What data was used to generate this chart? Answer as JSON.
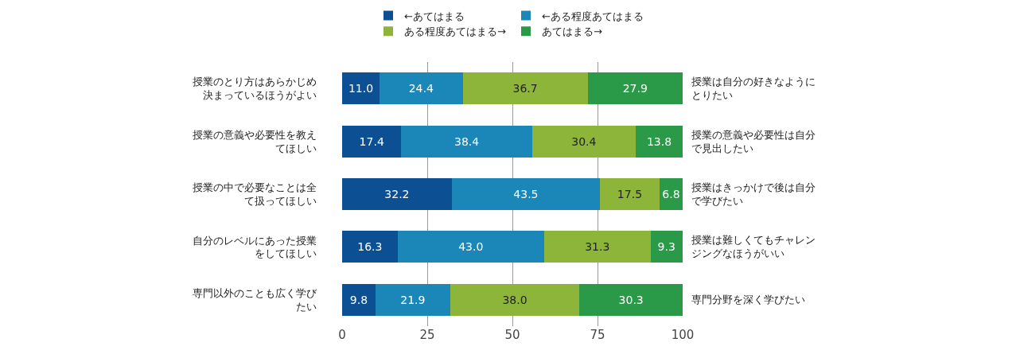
{
  "chart_data": {
    "type": "bar",
    "orientation": "horizontal",
    "stacked": true,
    "grid": "x",
    "legend": "top",
    "categories": [
      "授業のとり方はあらかじめ決まっているほうがよい",
      "授業の意義や必要性を教えてほしい",
      "授業の中で必要なことは全て扱ってほしい",
      "自分のレベルにあった授業をしてほしい",
      "専門以外のことも広く学びたい"
    ],
    "y2_categories": [
      "授業は自分の好きなようにとりたい",
      "授業の意義や必要性は自分で見出したい",
      "授業はきっかけで後は自分で学びたい",
      "授業は難しくてもチャレンジングなほうがいい",
      "専門分野を深く学びたい"
    ],
    "series": [
      {
        "name": "←あてはまる",
        "color": "#0d4f93",
        "values": [
          11.0,
          17.4,
          32.2,
          16.3,
          9.8
        ],
        "value_labels": [
          "11.0",
          "17.4",
          "32.2",
          "16.3",
          "9.8"
        ]
      },
      {
        "name": "←ある程度あてはまる",
        "color": "#1a87b8",
        "values": [
          24.4,
          38.4,
          43.5,
          43.0,
          21.9
        ],
        "value_labels": [
          "24.4",
          "38.4",
          "43.5",
          "43.0",
          "21.9"
        ]
      },
      {
        "name": "ある程度あてはまる→",
        "color": "#8cb53a",
        "values": [
          36.7,
          30.4,
          17.5,
          31.3,
          38.0
        ],
        "value_labels": [
          "36.7",
          "30.4",
          "17.5",
          "31.3",
          "38.0"
        ]
      },
      {
        "name": "あてはまる→",
        "color": "#2a9a48",
        "values": [
          27.9,
          13.8,
          6.8,
          9.3,
          30.3
        ],
        "value_labels": [
          "27.9",
          "13.8",
          "6.8",
          "9.3",
          "30.3"
        ]
      }
    ],
    "xlim": [
      0,
      100
    ],
    "xticks": [
      0,
      25,
      50,
      75,
      100
    ]
  }
}
